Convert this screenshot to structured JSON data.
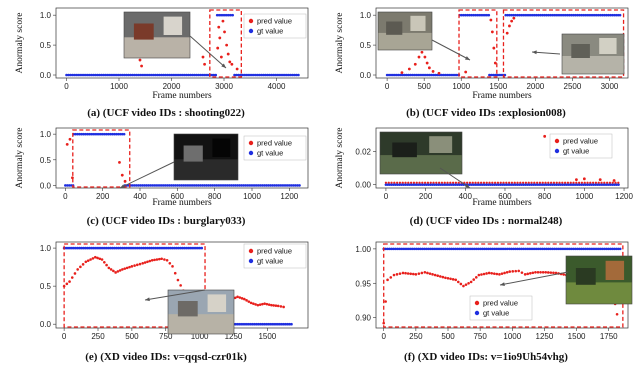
{
  "colors": {
    "pred": "#e8201c",
    "gt": "#1f2fe0",
    "highlight": "#e8201c",
    "arrow": "#555555"
  },
  "chart_data": [
    {
      "type": "scatter",
      "caption": "(a) (UCF video IDs : shooting022)",
      "xlabel": "Frame numbers",
      "ylabel": "Anormaly score",
      "xlim": [
        -200,
        4600
      ],
      "ylim": [
        -0.05,
        1.12
      ],
      "xticks": [
        0,
        1000,
        2000,
        3000,
        4000
      ],
      "yticks": [
        0.0,
        0.5,
        1.0
      ],
      "ytick_labels": [
        "0.0",
        "0.5",
        "1.0"
      ],
      "legend": [
        "pred value",
        "gt value"
      ],
      "legend_position": "right",
      "thumbnail": "surveillance-room-frame",
      "gt_segments": [
        [
          0,
          2870,
          0
        ],
        [
          2870,
          3200,
          1
        ],
        [
          3200,
          4450,
          0
        ]
      ],
      "pred_points": [
        [
          1400,
          0.25
        ],
        [
          1430,
          0.15
        ],
        [
          2600,
          0.3
        ],
        [
          2630,
          0.18
        ],
        [
          2880,
          0.45
        ],
        [
          2900,
          0.8
        ],
        [
          2920,
          0.62
        ],
        [
          2950,
          0.3
        ],
        [
          2980,
          0.9
        ],
        [
          3010,
          0.72
        ],
        [
          3050,
          0.5
        ],
        [
          3080,
          0.35
        ],
        [
          3110,
          0.22
        ],
        [
          3150,
          0.18
        ],
        [
          3250,
          0.1
        ]
      ],
      "highlight_ranges": [
        [
          2730,
          3330
        ]
      ]
    },
    {
      "type": "scatter",
      "caption": "(b) (UCF video IDs :explosion008)",
      "xlabel": "Frame numbers",
      "ylabel": "Anormaly score",
      "xlim": [
        -150,
        3250
      ],
      "ylim": [
        -0.05,
        1.12
      ],
      "xticks": [
        0,
        500,
        1000,
        1500,
        2000,
        2500,
        3000
      ],
      "yticks": [
        0.0,
        0.5,
        1.0
      ],
      "ytick_labels": [
        "0.0",
        "0.5",
        "1.0"
      ],
      "legend": [],
      "legend_position": "",
      "thumbnail": "explosion-street-frames",
      "gt_segments": [
        [
          0,
          980,
          0
        ],
        [
          980,
          1380,
          1
        ],
        [
          1380,
          1600,
          0
        ],
        [
          1600,
          3150,
          1
        ]
      ],
      "pred_points": [
        [
          200,
          0.04
        ],
        [
          300,
          0.1
        ],
        [
          380,
          0.18
        ],
        [
          430,
          0.3
        ],
        [
          470,
          0.38
        ],
        [
          510,
          0.3
        ],
        [
          540,
          0.2
        ],
        [
          570,
          0.12
        ],
        [
          620,
          0.06
        ],
        [
          700,
          0.03
        ],
        [
          1060,
          0.05
        ],
        [
          1400,
          0.92
        ],
        [
          1420,
          0.72
        ],
        [
          1440,
          0.45
        ],
        [
          1460,
          0.2
        ],
        [
          1620,
          0.7
        ],
        [
          1650,
          0.82
        ],
        [
          1680,
          0.9
        ],
        [
          1710,
          0.95
        ],
        [
          3080,
          0.15
        ],
        [
          3120,
          0.1
        ]
      ],
      "highlight_ranges": [
        [
          970,
          1480
        ],
        [
          1570,
          3190
        ]
      ]
    },
    {
      "type": "scatter",
      "caption": "(c) (UCF video IDs : burglary033)",
      "xlabel": "Frame numbers",
      "ylabel": "Anormaly score",
      "xlim": [
        -50,
        1300
      ],
      "ylim": [
        -0.05,
        1.12
      ],
      "xticks": [
        0,
        200,
        400,
        600,
        800,
        1000,
        1200
      ],
      "yticks": [
        0.0,
        0.5,
        1.0
      ],
      "ytick_labels": [
        "0.0",
        "0.5",
        "1.0"
      ],
      "legend": [
        "pred value",
        "gt value"
      ],
      "legend_position": "right",
      "thumbnail": "burglary-dark-fisheye-frame",
      "gt_segments": [
        [
          0,
          45,
          0
        ],
        [
          45,
          320,
          1
        ],
        [
          320,
          1260,
          0
        ]
      ],
      "pred_points": [
        [
          10,
          0.8
        ],
        [
          25,
          0.9
        ],
        [
          38,
          0.15
        ],
        [
          290,
          0.45
        ],
        [
          305,
          0.2
        ],
        [
          320,
          0.08
        ]
      ],
      "highlight_ranges": [
        [
          40,
          345
        ]
      ]
    },
    {
      "type": "scatter",
      "caption": "(d) (UCF video IDs : normal248)",
      "xlabel": "Frame numbers",
      "ylabel": "Anormaly score",
      "xlim": [
        -50,
        1220
      ],
      "ylim": [
        -0.002,
        0.034
      ],
      "xticks": [
        0,
        200,
        400,
        600,
        800,
        1000,
        1200
      ],
      "yticks": [
        0.0,
        0.02
      ],
      "ytick_labels": [
        "0.00",
        "0.02"
      ],
      "legend": [
        "pred value",
        "gt value"
      ],
      "legend_position": "right",
      "thumbnail": "normal-street-night-frame",
      "gt_segments": [
        [
          0,
          1180,
          0
        ]
      ],
      "pred_points": [
        [
          800,
          0.029
        ],
        [
          860,
          0.026
        ],
        [
          960,
          0.003
        ],
        [
          1000,
          0.0035
        ],
        [
          1080,
          0.003
        ],
        [
          1150,
          0.0025
        ]
      ],
      "pred_baseline": 0.0012,
      "highlight_ranges": []
    },
    {
      "type": "scatter",
      "caption": "(e) (XD video IDs: v=qqsd-czr01k)",
      "xlabel": "",
      "ylabel": "",
      "xlim": [
        -60,
        1800
      ],
      "ylim": [
        -0.05,
        1.08
      ],
      "xticks": [
        0,
        250,
        500,
        750,
        1000,
        1250,
        1500
      ],
      "yticks": [
        0.0,
        0.5,
        1.0
      ],
      "ytick_labels": [
        "0.0",
        "0.5",
        "1.0"
      ],
      "legend": [
        "pred value",
        "gt value"
      ],
      "legend_position": "right",
      "thumbnail": "city-street-traffic-frame",
      "gt_segments": [
        [
          0,
          1020,
          1
        ],
        [
          1020,
          1680,
          0
        ]
      ],
      "pred_curve": [
        [
          0,
          0.5
        ],
        [
          40,
          0.56
        ],
        [
          100,
          0.72
        ],
        [
          160,
          0.82
        ],
        [
          230,
          0.88
        ],
        [
          280,
          0.85
        ],
        [
          330,
          0.74
        ],
        [
          380,
          0.68
        ],
        [
          430,
          0.72
        ],
        [
          500,
          0.76
        ],
        [
          580,
          0.8
        ],
        [
          650,
          0.84
        ],
        [
          720,
          0.86
        ],
        [
          760,
          0.84
        ],
        [
          800,
          0.76
        ],
        [
          840,
          0.58
        ],
        [
          880,
          0.44
        ],
        [
          920,
          0.38
        ],
        [
          960,
          0.33
        ],
        [
          1000,
          0.3
        ],
        [
          1040,
          0.32
        ],
        [
          1080,
          0.34
        ],
        [
          1120,
          0.3
        ],
        [
          1180,
          0.26
        ],
        [
          1230,
          0.32
        ],
        [
          1280,
          0.36
        ],
        [
          1330,
          0.33
        ],
        [
          1380,
          0.28
        ],
        [
          1430,
          0.25
        ],
        [
          1480,
          0.27
        ],
        [
          1530,
          0.25
        ],
        [
          1580,
          0.24
        ],
        [
          1640,
          0.22
        ]
      ],
      "highlight_ranges": [
        [
          0,
          1040
        ]
      ]
    },
    {
      "type": "scatter",
      "caption": "(f) (XD video IDs: v=1io9Uh54vhg)",
      "xlabel": "",
      "ylabel": "",
      "xlim": [
        -60,
        1900
      ],
      "ylim": [
        0.885,
        1.01
      ],
      "xticks": [
        0,
        250,
        500,
        750,
        1000,
        1250,
        1500,
        1750
      ],
      "yticks": [
        0.9,
        0.95,
        1.0
      ],
      "ytick_labels": [
        "0.90",
        "0.95",
        "1.00"
      ],
      "legend": [
        "pred value",
        "gt value"
      ],
      "legend_position": "center",
      "thumbnail": "forest-foliage-frame",
      "gt_segments": [
        [
          0,
          1850,
          1
        ]
      ],
      "pred_curve": [
        [
          0,
          0.892
        ],
        [
          30,
          0.955
        ],
        [
          80,
          0.962
        ],
        [
          150,
          0.965
        ],
        [
          250,
          0.963
        ],
        [
          320,
          0.966
        ],
        [
          400,
          0.962
        ],
        [
          480,
          0.958
        ],
        [
          560,
          0.955
        ],
        [
          620,
          0.946
        ],
        [
          680,
          0.952
        ],
        [
          740,
          0.962
        ],
        [
          820,
          0.965
        ],
        [
          900,
          0.963
        ],
        [
          980,
          0.967
        ],
        [
          1050,
          0.968
        ],
        [
          1100,
          0.963
        ],
        [
          1180,
          0.966
        ],
        [
          1260,
          0.966
        ],
        [
          1340,
          0.965
        ],
        [
          1420,
          0.962
        ],
        [
          1500,
          0.966
        ],
        [
          1580,
          0.968
        ],
        [
          1660,
          0.965
        ],
        [
          1740,
          0.962
        ],
        [
          1800,
          0.92
        ],
        [
          1830,
          0.89
        ]
      ],
      "highlight_ranges": [
        [
          0,
          1860
        ]
      ]
    }
  ]
}
